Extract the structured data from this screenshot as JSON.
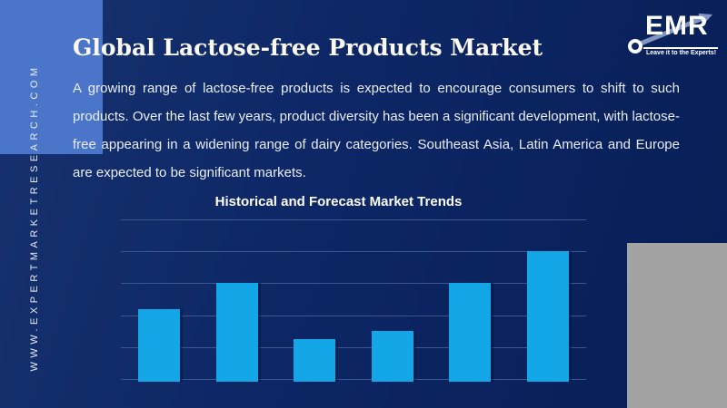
{
  "sidebar": {
    "website": "WWW.EXPERTMARKETRESEARCH.COM"
  },
  "header": {
    "title": "Global Lactose-free Products Market",
    "paragraph": "A growing range of lactose-free products is expected to encourage consumers to shift to such products. Over the last few years, product diversity has been a significant development, with lactose-free appearing in a widening range of dairy categories. Southeast Asia, Latin America and Europe are expected to be significant markets."
  },
  "logo": {
    "text": "EMR",
    "tagline": "Leave it to the Experts!"
  },
  "chart_data": {
    "type": "bar",
    "title": "Historical and Forecast Market Trends",
    "categories": [
      "",
      "",
      "",
      "",
      "",
      ""
    ],
    "values": [
      2.2,
      3,
      1.25,
      1.5,
      3,
      4
    ],
    "xlabel": "",
    "ylabel": "",
    "ylim": [
      0,
      5
    ],
    "gridlines": {
      "orientation": "horizontal",
      "count": 6
    },
    "axis_tick_labels": "none",
    "legend": "none",
    "bar_color": "#14a7e8"
  },
  "colors": {
    "background_navy": "#0d2766",
    "accent_square_blue": "#4a75c9",
    "bar_blue": "#14a7e8",
    "gridline_slate": "#3a588e",
    "gray_panel": "#a3a3a3",
    "arrow_blue_gray": "#8296c2",
    "text_white": "#ffffff"
  }
}
